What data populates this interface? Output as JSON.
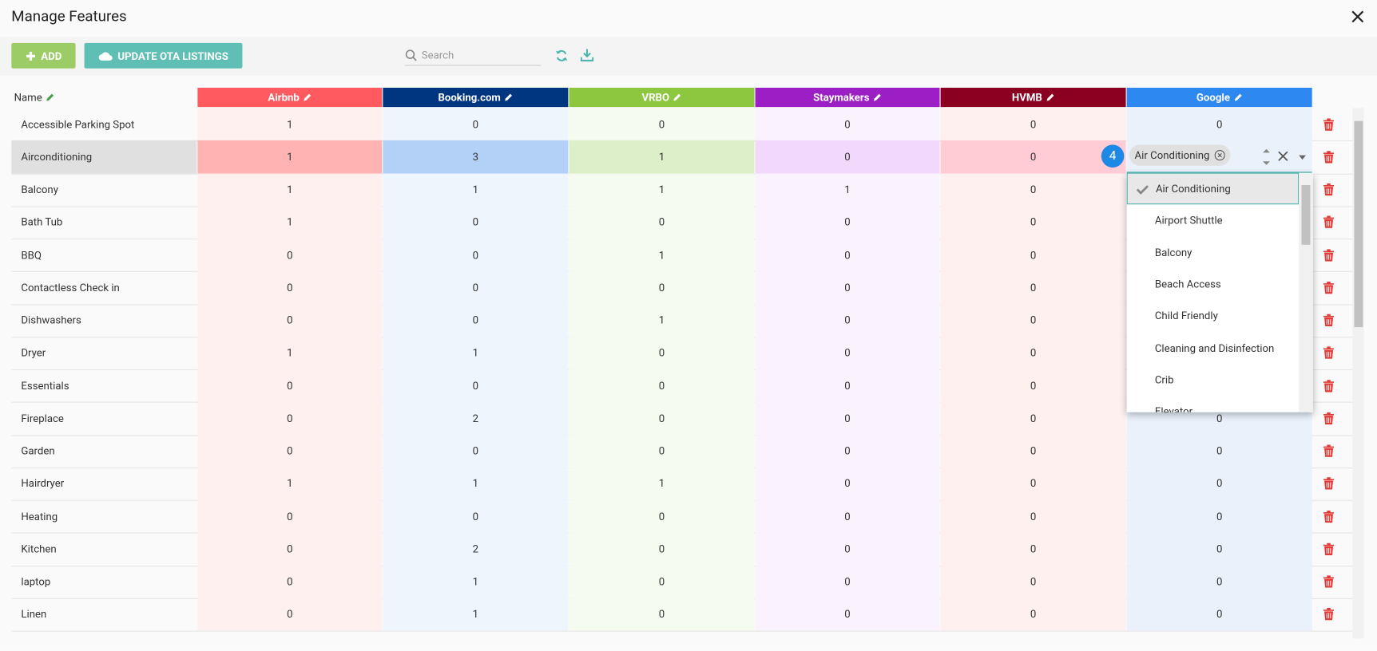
{
  "header": {
    "title": "Manage Features"
  },
  "toolbar": {
    "add_button": "ADD",
    "update_button": "UPDATE OTA LISTINGS",
    "search_placeholder": "Search"
  },
  "table": {
    "columns": [
      "Name",
      "Airbnb",
      "Booking.com",
      "VRBO",
      "Staymakers",
      "HVMB",
      "Google"
    ],
    "rows": [
      [
        "Accessible Parking Spot",
        "1",
        "0",
        "0",
        "0",
        "0",
        "0"
      ],
      [
        "Airconditioning",
        "1",
        "3",
        "1",
        "0",
        "0",
        null
      ],
      [
        "Balcony",
        "1",
        "1",
        "1",
        "1",
        "0",
        null
      ],
      [
        "Bath Tub",
        "1",
        "0",
        "0",
        "0",
        "0",
        null
      ],
      [
        "BBQ",
        "0",
        "0",
        "1",
        "0",
        "0",
        null
      ],
      [
        "Contactless Check in",
        "0",
        "0",
        "0",
        "0",
        "0",
        null
      ],
      [
        "Dishwashers",
        "0",
        "0",
        "1",
        "0",
        "0",
        null
      ],
      [
        "Dryer",
        "1",
        "1",
        "0",
        "0",
        "0",
        null
      ],
      [
        "Essentials",
        "0",
        "0",
        "0",
        "0",
        "0",
        null
      ],
      [
        "Fireplace",
        "0",
        "2",
        "0",
        "0",
        "0",
        "0"
      ],
      [
        "Garden",
        "0",
        "0",
        "0",
        "0",
        "0",
        "0"
      ],
      [
        "Hairdryer",
        "1",
        "1",
        "1",
        "0",
        "0",
        "0"
      ],
      [
        "Heating",
        "0",
        "0",
        "0",
        "0",
        "0",
        "0"
      ],
      [
        "Kitchen",
        "0",
        "2",
        "0",
        "0",
        "0",
        "0"
      ],
      [
        "laptop",
        "0",
        "1",
        "0",
        "0",
        "0",
        "0"
      ],
      [
        "Linen",
        "0",
        "1",
        "0",
        "0",
        "0",
        "0"
      ]
    ]
  },
  "editor": {
    "badge": "4",
    "selected_chip": "Air Conditioning",
    "options": [
      "Air Conditioning",
      "Airport Shuttle",
      "Balcony",
      "Beach Access",
      "Child Friendly",
      "Cleaning and Disinfection",
      "Crib",
      "Elevator"
    ]
  }
}
